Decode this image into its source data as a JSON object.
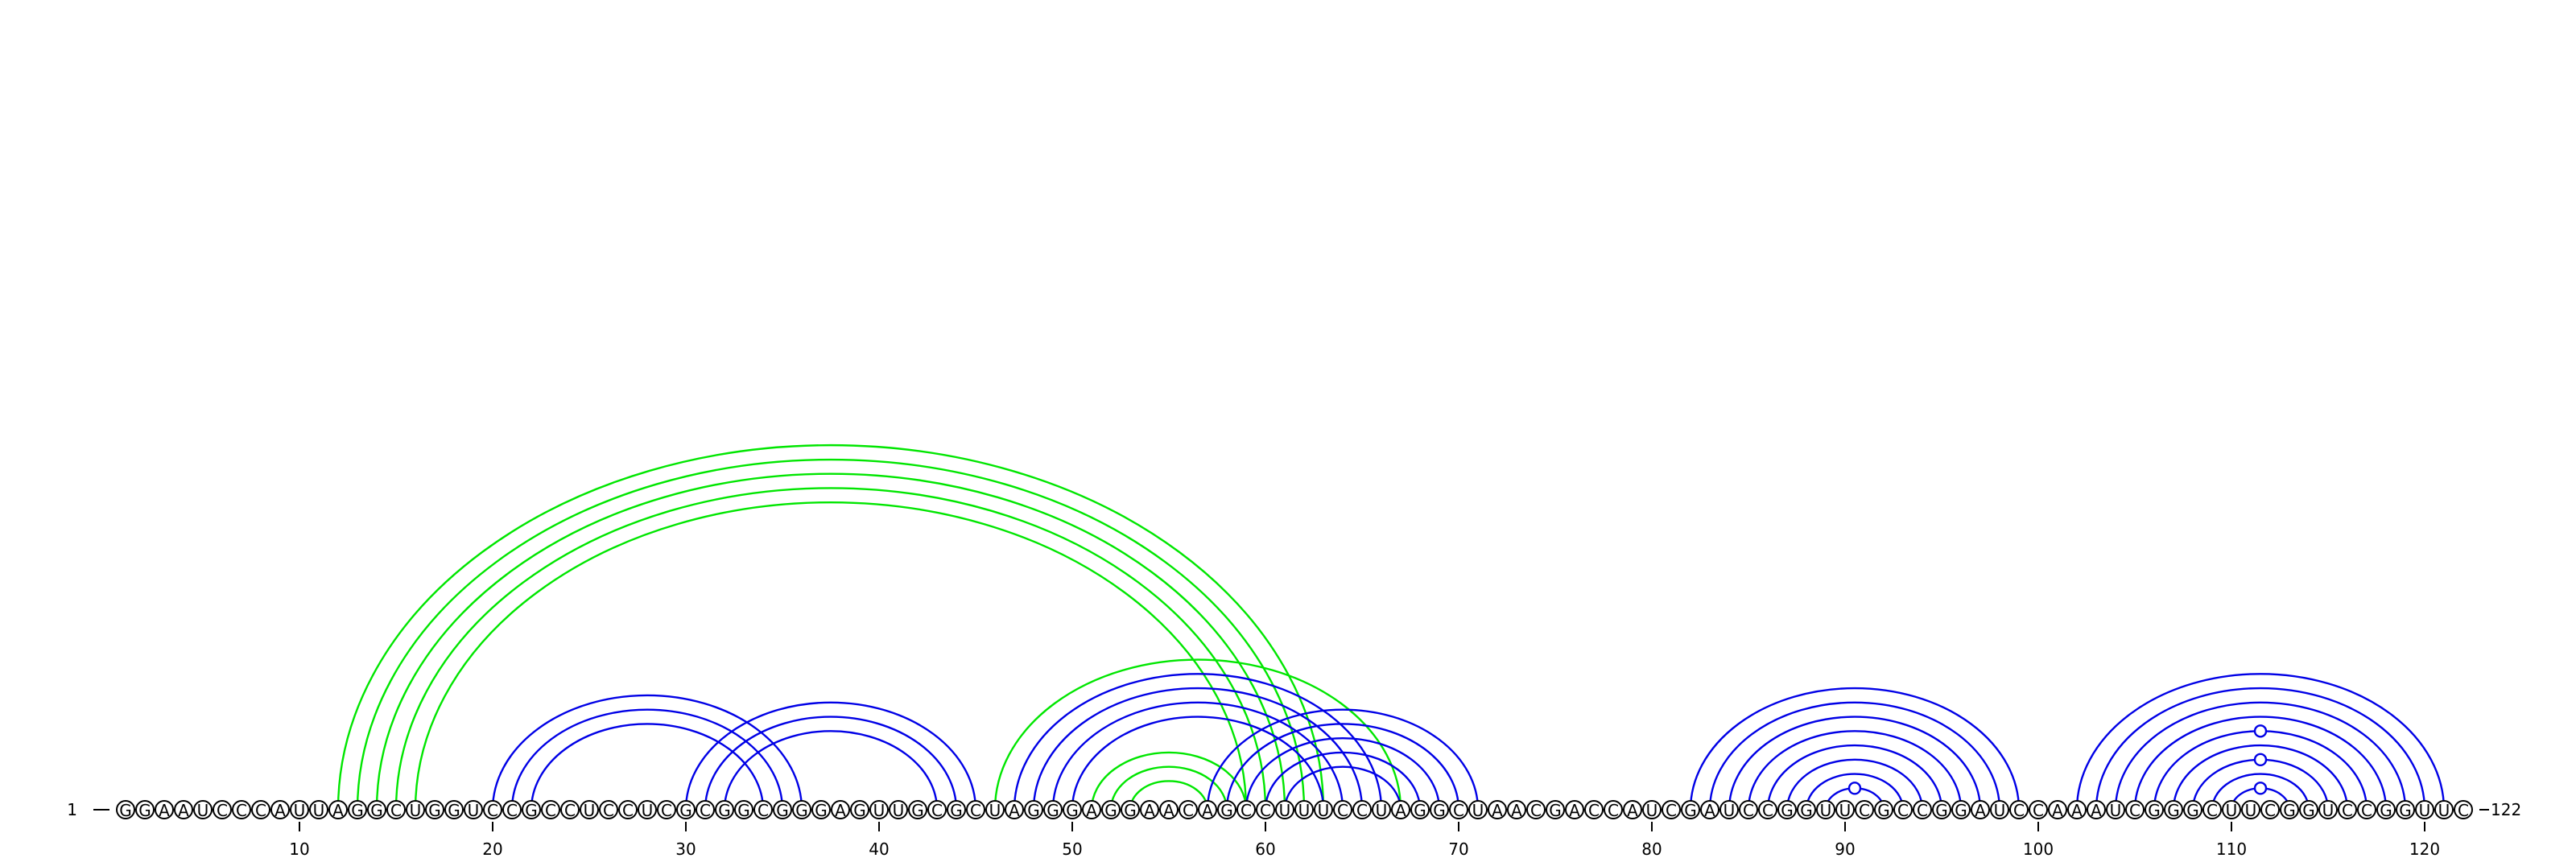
{
  "diagram": {
    "sequence": "GGAAUCCCAUUAGGCUGGUCCGCCUCCUCGCGGCGGGAGUUGCGCUAGGGAGGAACAGCCUUUCCUAGGCUAACGACCAUCGAUCCGGUUCGCCGGAUCCAAAUCGGGCUUCGGUCCGGUUC",
    "start_label": "1",
    "end_label": "122",
    "ticks": [
      "10",
      "20",
      "30",
      "40",
      "50",
      "60",
      "70",
      "80",
      "90",
      "100",
      "110",
      "120"
    ],
    "colors": {
      "blue": "#0000e6",
      "green": "#00e600",
      "outline": "#000000"
    },
    "arc_groups": [
      {
        "color": "green",
        "pairs": [
          [
            12,
            63
          ],
          [
            13,
            62
          ],
          [
            14,
            61
          ],
          [
            15,
            60
          ],
          [
            16,
            59
          ]
        ]
      },
      {
        "color": "green",
        "pairs": [
          [
            46,
            67
          ]
        ]
      },
      {
        "color": "green",
        "pairs": [
          [
            51,
            59
          ],
          [
            52,
            58
          ],
          [
            53,
            57
          ]
        ]
      },
      {
        "color": "blue",
        "pairs": [
          [
            20,
            36
          ],
          [
            21,
            35
          ],
          [
            22,
            34
          ]
        ]
      },
      {
        "color": "blue",
        "pairs": [
          [
            30,
            45
          ],
          [
            31,
            44
          ],
          [
            32,
            43
          ]
        ]
      },
      {
        "color": "blue",
        "pairs": [
          [
            47,
            66
          ],
          [
            48,
            65
          ],
          [
            49,
            64
          ],
          [
            50,
            63
          ]
        ]
      },
      {
        "color": "blue",
        "pairs": [
          [
            57,
            71
          ],
          [
            58,
            70
          ],
          [
            59,
            69
          ],
          [
            60,
            68
          ],
          [
            61,
            67
          ]
        ]
      },
      {
        "color": "blue",
        "pairs": [
          [
            82,
            99
          ],
          [
            83,
            98
          ],
          [
            84,
            97
          ],
          [
            85,
            96
          ],
          [
            86,
            95
          ],
          [
            87,
            94
          ],
          [
            88,
            93
          ],
          [
            89,
            92
          ]
        ]
      },
      {
        "color": "blue",
        "pairs": [
          [
            102,
            121
          ],
          [
            103,
            120
          ],
          [
            104,
            119
          ],
          [
            105,
            118
          ],
          [
            106,
            117
          ],
          [
            107,
            116
          ],
          [
            108,
            115
          ],
          [
            109,
            114
          ],
          [
            110,
            113
          ]
        ]
      }
    ],
    "bulges": [
      {
        "color": "blue",
        "center": 90.5,
        "between": [
          89,
          92
        ]
      },
      {
        "color": "blue",
        "center": 111.5,
        "between": [
          106,
          117
        ]
      },
      {
        "color": "blue",
        "center": 111.5,
        "between": [
          108,
          115
        ]
      },
      {
        "color": "blue",
        "center": 111.5,
        "between": [
          110,
          113
        ]
      }
    ]
  }
}
